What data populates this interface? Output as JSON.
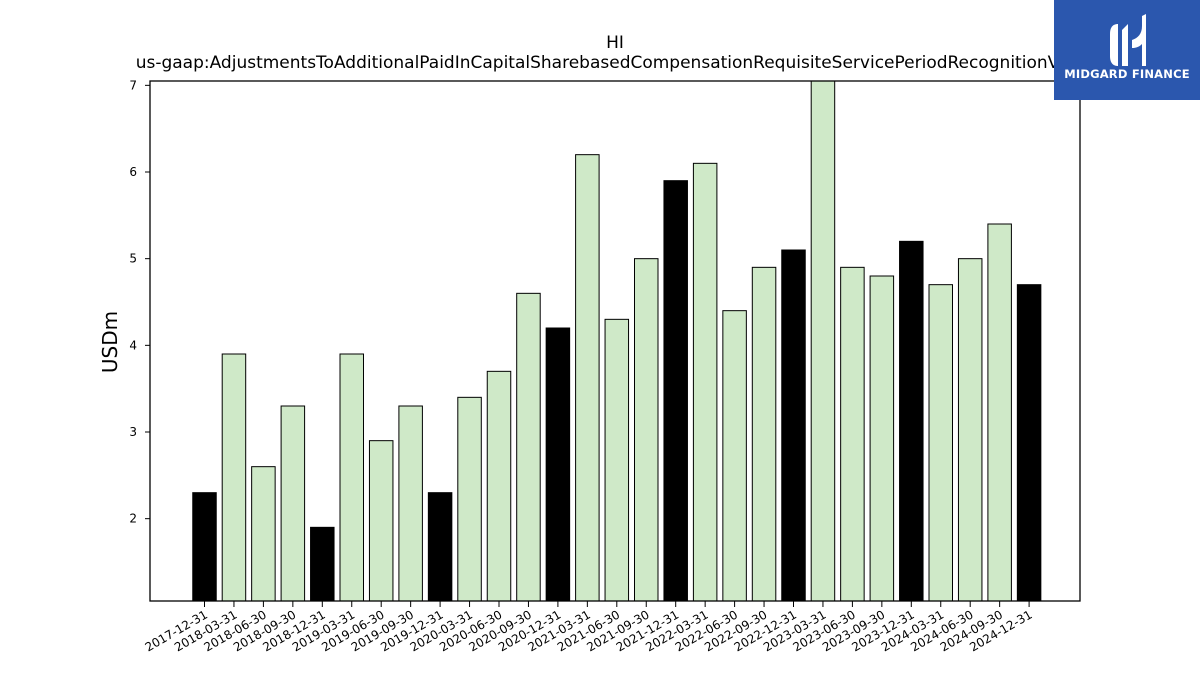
{
  "logo": {
    "text": "MIDGARD FINANCE",
    "icon": "midgard-logo-icon",
    "background": "#2b57ae"
  },
  "chart_data": {
    "type": "bar",
    "title": "HI",
    "subtitle": "us-gaap:AdjustmentsToAdditionalPaidInCapitalSharebasedCompensationRequisiteServicePeriodRecognitionValue",
    "xlabel": "",
    "ylabel": "USDm",
    "ylim": [
      1.05,
      7.05
    ],
    "yticks": [
      2,
      3,
      4,
      5,
      6,
      7
    ],
    "grid": false,
    "legend": "none",
    "colors": {
      "year_end": "#000000",
      "other": "#cfe9c8",
      "edge": "#000000"
    },
    "categories": [
      "2017-12-31",
      "2018-03-31",
      "2018-06-30",
      "2018-09-30",
      "2018-12-31",
      "2019-03-31",
      "2019-06-30",
      "2019-09-30",
      "2019-12-31",
      "2020-03-31",
      "2020-06-30",
      "2020-09-30",
      "2020-12-31",
      "2021-03-31",
      "2021-06-30",
      "2021-09-30",
      "2021-12-31",
      "2022-03-31",
      "2022-06-30",
      "2022-09-30",
      "2022-12-31",
      "2023-03-31",
      "2023-06-30",
      "2023-09-30",
      "2023-12-31",
      "2024-03-31",
      "2024-06-30",
      "2024-09-30",
      "2024-12-31"
    ],
    "values": [
      2.3,
      3.9,
      2.6,
      3.3,
      1.9,
      3.9,
      2.9,
      3.3,
      2.3,
      3.4,
      3.7,
      4.6,
      4.2,
      6.2,
      4.3,
      5.0,
      5.9,
      6.1,
      4.4,
      4.9,
      5.1,
      7.1,
      4.9,
      4.8,
      5.2,
      4.7,
      5.0,
      5.4,
      4.7
    ]
  }
}
